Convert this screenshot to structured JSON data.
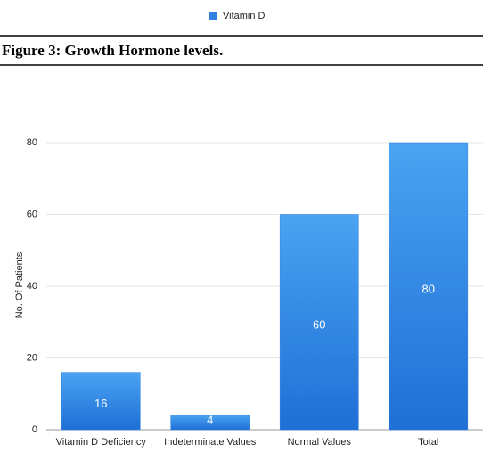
{
  "caption": "Figure 3: Growth Hormone levels.",
  "chart_data": {
    "type": "bar",
    "ylabel": "No. Of Patients",
    "categories": [
      "Vitamin D Deficiency",
      "Indeterminate Values",
      "Normal Values",
      "Total"
    ],
    "series": [
      {
        "name": "Vitamin D",
        "color": "#2f80e0",
        "values": [
          16,
          4,
          60,
          80
        ]
      }
    ],
    "ylim": [
      0,
      80
    ],
    "yticks": [
      0,
      20,
      40,
      60,
      80
    ],
    "grid": true,
    "legend": "top"
  }
}
